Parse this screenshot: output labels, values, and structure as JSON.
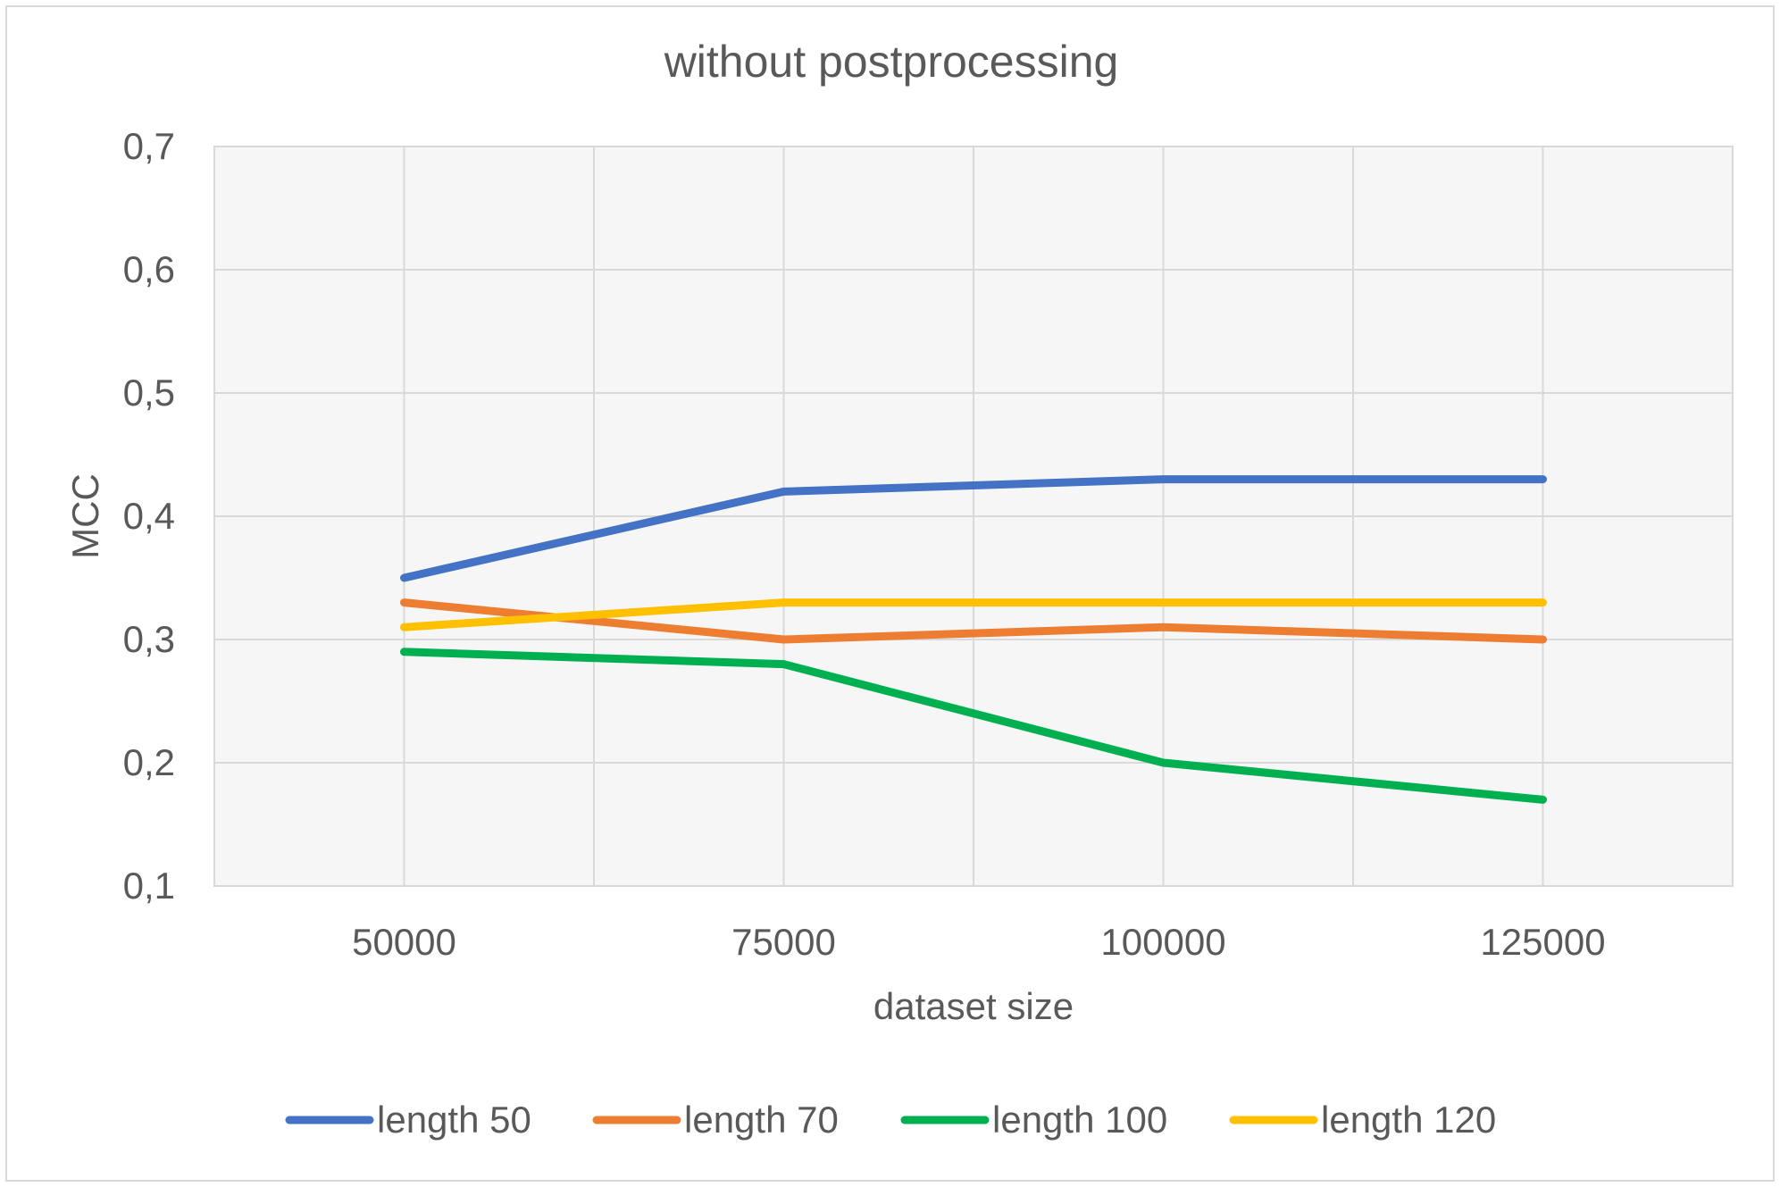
{
  "chart_data": {
    "type": "line",
    "title": "without postprocessing",
    "xlabel": "dataset size",
    "ylabel": "MCC",
    "x": [
      50000,
      75000,
      100000,
      125000
    ],
    "x_tick_labels": [
      "50000",
      "75000",
      "100000",
      "125000"
    ],
    "ylim": [
      0.1,
      0.7
    ],
    "y_ticks": [
      0.1,
      0.2,
      0.3,
      0.4,
      0.5,
      0.6,
      0.7
    ],
    "y_tick_labels": [
      "0,1",
      "0,2",
      "0,3",
      "0,4",
      "0,5",
      "0,6",
      "0,7"
    ],
    "grid": true,
    "legend_position": "bottom",
    "series": [
      {
        "name": "length 50",
        "color": "#4472C4",
        "values": [
          0.35,
          0.42,
          0.43,
          0.43
        ]
      },
      {
        "name": "length 70",
        "color": "#ED7D31",
        "values": [
          0.33,
          0.3,
          0.31,
          0.3
        ]
      },
      {
        "name": "length 100",
        "color": "#00B050",
        "values": [
          0.29,
          0.28,
          0.2,
          0.17
        ]
      },
      {
        "name": "length 120",
        "color": "#FFC000",
        "values": [
          0.31,
          0.33,
          0.33,
          0.33
        ]
      }
    ]
  }
}
